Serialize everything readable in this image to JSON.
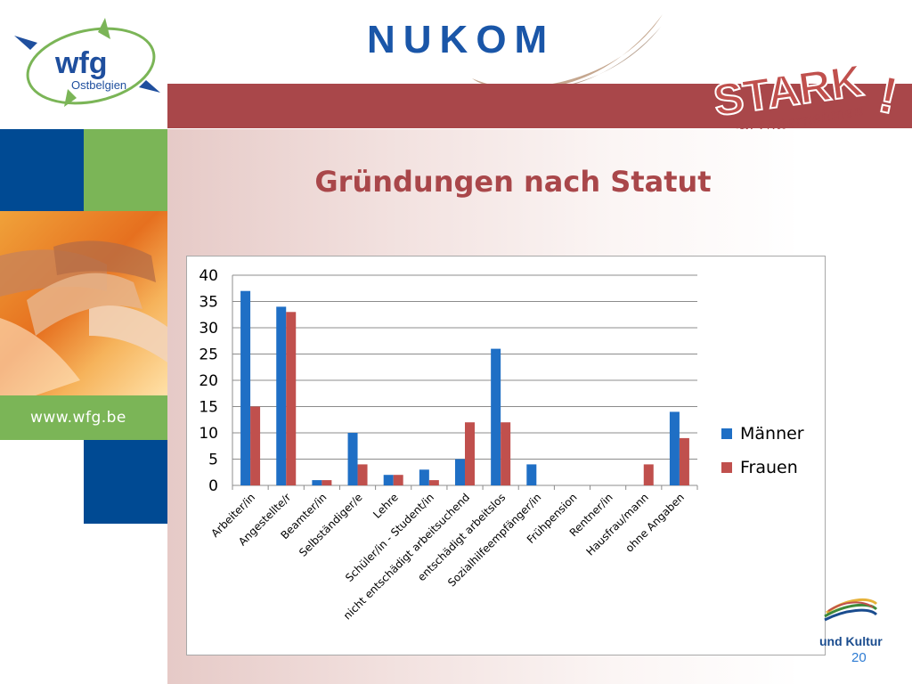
{
  "header": {
    "logo_name": "wfg",
    "logo_sub": "Ostbelgien",
    "brand": "NUKOM",
    "stark_text": "STARK",
    "stark_sub": "im Unternehmen"
  },
  "sidebar": {
    "url": "www.wfg.be"
  },
  "slide": {
    "title": "Gründungen nach Statut",
    "page_number": "20"
  },
  "footer": {
    "partial_text": "und Kultur"
  },
  "colors": {
    "accent_red": "#a9474a",
    "brand_blue": "#004a93",
    "green": "#7bb557",
    "maenner": "#1f6fc5",
    "frauen": "#c0504d"
  },
  "chart_data": {
    "type": "bar",
    "categories": [
      "Arbeiter/in",
      "Angestellte/r",
      "Beamter/in",
      "Selbständiger/e",
      "Lehre",
      "Schüler/in - Student/in",
      "nicht entschädigt arbeitsuchend",
      "entschädigt arbeitslos",
      "Sozialhilfeempfänger/in",
      "Frühpension",
      "Rentner/in",
      "Hausfrau/mann",
      "ohne Angaben"
    ],
    "series": [
      {
        "name": "Männer",
        "values": [
          37,
          34,
          1,
          10,
          2,
          3,
          5,
          26,
          4,
          0,
          0,
          0,
          14
        ]
      },
      {
        "name": "Frauen",
        "values": [
          15,
          33,
          1,
          4,
          2,
          1,
          12,
          12,
          0,
          0,
          0,
          4,
          9
        ]
      }
    ],
    "ylim": [
      0,
      40
    ],
    "yticks": [
      0,
      5,
      10,
      15,
      20,
      25,
      30,
      35,
      40
    ],
    "grid": true,
    "legend": "right"
  }
}
